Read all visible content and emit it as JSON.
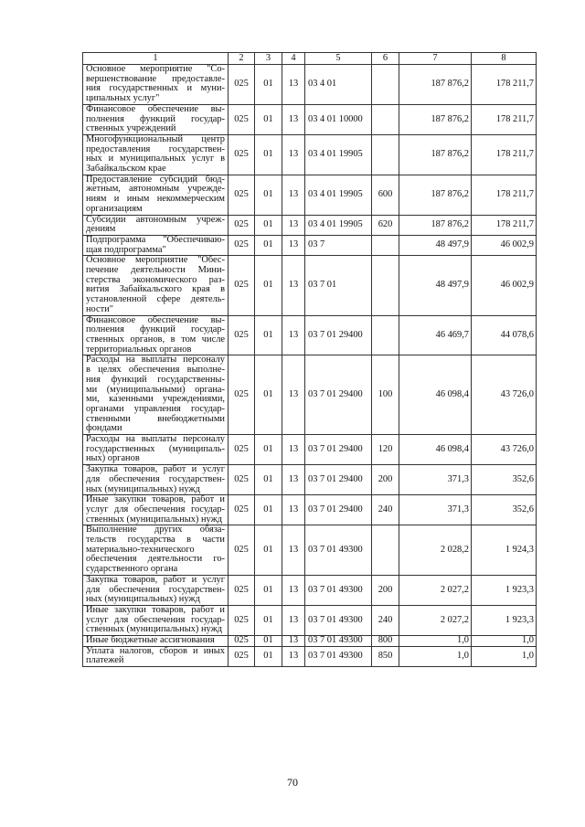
{
  "headers": [
    "1",
    "2",
    "3",
    "4",
    "5",
    "6",
    "7",
    "8"
  ],
  "rows": [
    {
      "name": "Основное мероприятие \"Со-\nвершенствование предоставле-\nния государственных и муни-\nципальных услуг\"",
      "gr": "025",
      "rz": "01",
      "pr": "13",
      "csr": "03 4 01",
      "vr": "",
      "y1": "187 876,2",
      "y2": "178 211,7"
    },
    {
      "name": "Финансовое обеспечение вы-\nполнения функций государ-\nственных учреждений",
      "gr": "025",
      "rz": "01",
      "pr": "13",
      "csr": "03 4 01 10000",
      "vr": "",
      "y1": "187 876,2",
      "y2": "178 211,7"
    },
    {
      "name": "Многофункциональный центр\nпредоставления государствен-\nных и муниципальных услуг в\nЗабайкальском крае",
      "gr": "025",
      "rz": "01",
      "pr": "13",
      "csr": "03 4 01 19905",
      "vr": "",
      "y1": "187 876,2",
      "y2": "178 211,7"
    },
    {
      "name": "Предоставление субсидий бюд-\nжетным, автономным учрежде-\nниям и иным некоммерческим\nорганизациям",
      "gr": "025",
      "rz": "01",
      "pr": "13",
      "csr": "03 4 01 19905",
      "vr": "600",
      "y1": "187 876,2",
      "y2": "178 211,7"
    },
    {
      "name": "Субсидии автономным учреж-\nдениям",
      "gr": "025",
      "rz": "01",
      "pr": "13",
      "csr": "03 4 01 19905",
      "vr": "620",
      "y1": "187 876,2",
      "y2": "178 211,7"
    },
    {
      "name": "Подпрограмма \"Обеспечиваю-\nщая подпрограмма\"",
      "gr": "025",
      "rz": "01",
      "pr": "13",
      "csr": "03 7",
      "vr": "",
      "y1": "48 497,9",
      "y2": "46 002,9"
    },
    {
      "name": "Основное мероприятие \"Обес-\nпечение деятельности Мини-\nстерства экономического раз-\nвития Забайкальского края в\nустановленной сфере деятель-\nности\"",
      "gr": "025",
      "rz": "01",
      "pr": "13",
      "csr": "03 7 01",
      "vr": "",
      "y1": "48 497,9",
      "y2": "46 002,9"
    },
    {
      "name": "Финансовое обеспечение вы-\nполнения функций государ-\nственных органов, в том числе\nтерриториальных органов",
      "gr": "025",
      "rz": "01",
      "pr": "13",
      "csr": "03 7 01 29400",
      "vr": "",
      "y1": "46 469,7",
      "y2": "44 078,6"
    },
    {
      "name": "Расходы на выплаты персоналу\nв целях обеспечения выполне-\nния функций государственны-\nми (муниципальными) органа-\nми, казенными учреждениями,\nорганами управления государ-\nственными внебюджетными\nфондами",
      "gr": "025",
      "rz": "01",
      "pr": "13",
      "csr": "03 7 01 29400",
      "vr": "100",
      "y1": "46 098,4",
      "y2": "43 726,0"
    },
    {
      "name": "Расходы на выплаты персоналу\nгосударственных (муниципаль-\nных) органов",
      "gr": "025",
      "rz": "01",
      "pr": "13",
      "csr": "03 7 01 29400",
      "vr": "120",
      "y1": "46 098,4",
      "y2": "43 726,0"
    },
    {
      "name": "Закупка товаров, работ и услуг\nдля обеспечения государствен-\nных (муниципальных) нужд",
      "gr": "025",
      "rz": "01",
      "pr": "13",
      "csr": "03 7 01 29400",
      "vr": "200",
      "y1": "371,3",
      "y2": "352,6"
    },
    {
      "name": "Иные закупки товаров, работ и\nуслуг для обеспечения государ-\nственных (муниципальных) нужд",
      "gr": "025",
      "rz": "01",
      "pr": "13",
      "csr": "03 7 01 29400",
      "vr": "240",
      "y1": "371,3",
      "y2": "352,6"
    },
    {
      "name": "Выполнение других обяза-\nтельств государства в части\nматериально-технического\nобеспечения деятельности го-\nсударственного органа",
      "gr": "025",
      "rz": "01",
      "pr": "13",
      "csr": "03 7 01 49300",
      "vr": "",
      "y1": "2 028,2",
      "y2": "1 924,3"
    },
    {
      "name": "Закупка товаров, работ и услуг\nдля обеспечения государствен-\nных (муниципальных) нужд",
      "gr": "025",
      "rz": "01",
      "pr": "13",
      "csr": "03 7 01 49300",
      "vr": "200",
      "y1": "2 027,2",
      "y2": "1 923,3"
    },
    {
      "name": "Иные закупки товаров, работ и\nуслуг для обеспечения государ-\nственных (муниципальных) нужд",
      "gr": "025",
      "rz": "01",
      "pr": "13",
      "csr": "03 7 01 49300",
      "vr": "240",
      "y1": "2 027,2",
      "y2": "1 923,3"
    },
    {
      "name": "Иные бюджетные ассигнования",
      "gr": "025",
      "rz": "01",
      "pr": "13",
      "csr": "03 7 01 49300",
      "vr": "800",
      "y1": "1,0",
      "y2": "1,0"
    },
    {
      "name": "Уплата налогов, сборов и иных\nплатежей",
      "gr": "025",
      "rz": "01",
      "pr": "13",
      "csr": "03 7 01 49300",
      "vr": "850",
      "y1": "1,0",
      "y2": "1,0"
    }
  ],
  "page_number": "70"
}
